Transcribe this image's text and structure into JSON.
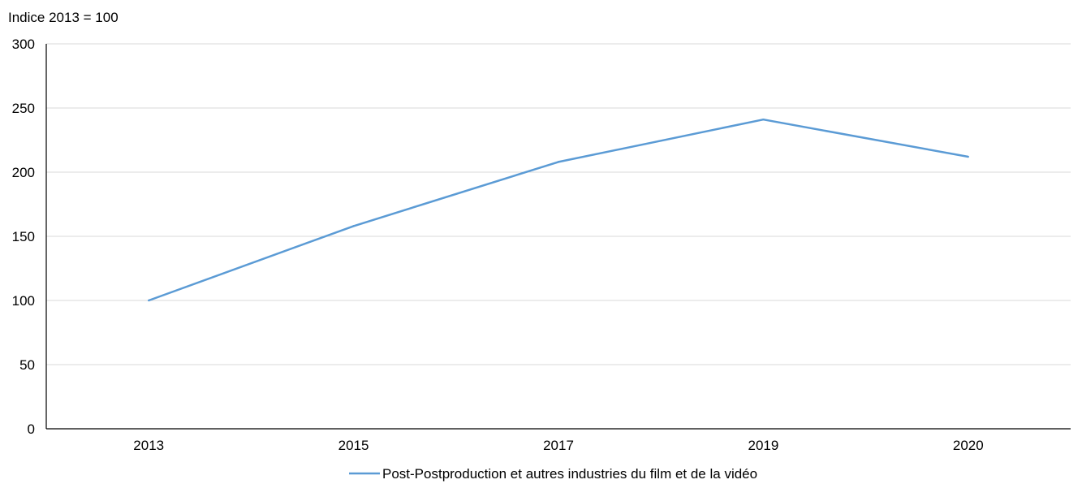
{
  "chart_data": {
    "type": "line",
    "ylabel": "Indice 2013 = 100",
    "ylim": [
      0,
      300
    ],
    "yticks": [
      0,
      50,
      100,
      150,
      200,
      250,
      300
    ],
    "categories": [
      "2013",
      "2015",
      "2017",
      "2019",
      "2020"
    ],
    "series": [
      {
        "name": "Post-Postproduction et autres industries du film et de la vidéo",
        "color": "#5b9bd5",
        "values": [
          100,
          158,
          208,
          241,
          212
        ]
      }
    ],
    "grid": true,
    "legend_position": "bottom-center"
  }
}
